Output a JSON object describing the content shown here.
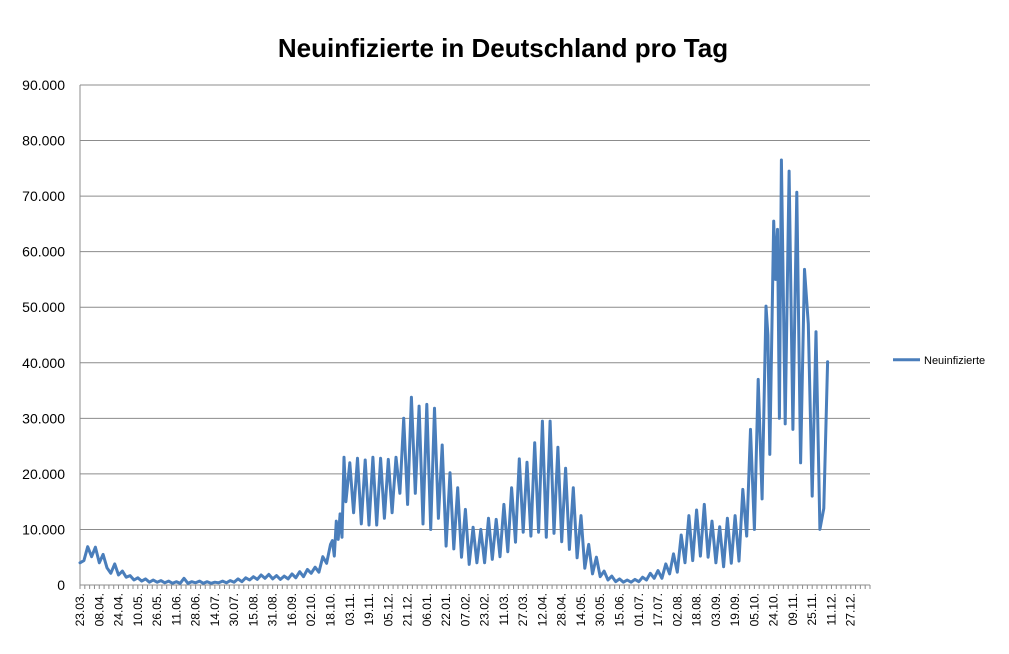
{
  "chart_data": {
    "type": "line",
    "title": "Neuinfizierte in Deutschland pro Tag",
    "xlabel": "",
    "ylabel": "",
    "ylim": [
      0,
      90000
    ],
    "yticks": [
      0,
      10000,
      20000,
      30000,
      40000,
      50000,
      60000,
      70000,
      80000,
      90000
    ],
    "ytick_labels": [
      "0",
      "10.000",
      "20.000",
      "30.000",
      "40.000",
      "50.000",
      "60.000",
      "70.000",
      "80.000",
      "90.000"
    ],
    "xtick_labels": [
      "23.03.",
      "08.04.",
      "24.04.",
      "10.05.",
      "26.05.",
      "11.06.",
      "28.06.",
      "14.07.",
      "30.07.",
      "15.08.",
      "31.08.",
      "16.09.",
      "02.10.",
      "18.10.",
      "03.11.",
      "19.11.",
      "05.12.",
      "21.12.",
      "06.01.",
      "22.01.",
      "07.02.",
      "23.02.",
      "11.03.",
      "27.03.",
      "12.04.",
      "28.04.",
      "14.05.",
      "30.05.",
      "15.06.",
      "01.07.",
      "17.07.",
      "02.08.",
      "18.08.",
      "03.09.",
      "19.09.",
      "05.10.",
      "24.10.",
      "09.11.",
      "25.11.",
      "11.12.",
      "27.12."
    ],
    "grid": true,
    "legend_position": "right",
    "color": "#4a7ebb",
    "series": [
      {
        "name": "Neuinfizierte",
        "x_index_range": [
          0,
          40.5
        ],
        "points": [
          [
            0.0,
            4000
          ],
          [
            0.2,
            4400
          ],
          [
            0.4,
            6900
          ],
          [
            0.6,
            5100
          ],
          [
            0.8,
            6800
          ],
          [
            1.0,
            4000
          ],
          [
            1.2,
            5500
          ],
          [
            1.4,
            3100
          ],
          [
            1.6,
            2100
          ],
          [
            1.8,
            3800
          ],
          [
            2.0,
            1800
          ],
          [
            2.2,
            2500
          ],
          [
            2.4,
            1400
          ],
          [
            2.6,
            1700
          ],
          [
            2.8,
            900
          ],
          [
            3.0,
            1300
          ],
          [
            3.2,
            700
          ],
          [
            3.4,
            1100
          ],
          [
            3.6,
            500
          ],
          [
            3.8,
            900
          ],
          [
            4.0,
            500
          ],
          [
            4.2,
            800
          ],
          [
            4.4,
            400
          ],
          [
            4.6,
            700
          ],
          [
            4.8,
            300
          ],
          [
            5.0,
            600
          ],
          [
            5.2,
            300
          ],
          [
            5.4,
            1200
          ],
          [
            5.6,
            300
          ],
          [
            5.8,
            600
          ],
          [
            6.0,
            400
          ],
          [
            6.2,
            700
          ],
          [
            6.4,
            300
          ],
          [
            6.6,
            600
          ],
          [
            6.8,
            300
          ],
          [
            7.0,
            500
          ],
          [
            7.2,
            400
          ],
          [
            7.4,
            700
          ],
          [
            7.6,
            400
          ],
          [
            7.8,
            800
          ],
          [
            8.0,
            500
          ],
          [
            8.2,
            1100
          ],
          [
            8.4,
            600
          ],
          [
            8.6,
            1300
          ],
          [
            8.8,
            900
          ],
          [
            9.0,
            1500
          ],
          [
            9.2,
            1000
          ],
          [
            9.4,
            1800
          ],
          [
            9.6,
            1200
          ],
          [
            9.8,
            1900
          ],
          [
            10.0,
            1100
          ],
          [
            10.2,
            1700
          ],
          [
            10.4,
            1000
          ],
          [
            10.6,
            1600
          ],
          [
            10.8,
            1100
          ],
          [
            11.0,
            2000
          ],
          [
            11.2,
            1300
          ],
          [
            11.4,
            2400
          ],
          [
            11.6,
            1500
          ],
          [
            11.8,
            2800
          ],
          [
            12.0,
            2100
          ],
          [
            12.2,
            3200
          ],
          [
            12.4,
            2300
          ],
          [
            12.6,
            5100
          ],
          [
            12.8,
            3900
          ],
          [
            13.0,
            7300
          ],
          [
            13.1,
            8000
          ],
          [
            13.2,
            5200
          ],
          [
            13.3,
            11500
          ],
          [
            13.4,
            8200
          ],
          [
            13.5,
            12800
          ],
          [
            13.6,
            8600
          ],
          [
            13.7,
            23000
          ],
          [
            13.8,
            15000
          ],
          [
            14.0,
            22000
          ],
          [
            14.2,
            13000
          ],
          [
            14.4,
            22800
          ],
          [
            14.6,
            11000
          ],
          [
            14.8,
            22500
          ],
          [
            15.0,
            10800
          ],
          [
            15.2,
            23000
          ],
          [
            15.4,
            10800
          ],
          [
            15.6,
            22800
          ],
          [
            15.8,
            12000
          ],
          [
            16.0,
            22600
          ],
          [
            16.2,
            13000
          ],
          [
            16.4,
            23000
          ],
          [
            16.6,
            16500
          ],
          [
            16.8,
            30000
          ],
          [
            17.0,
            14500
          ],
          [
            17.2,
            33800
          ],
          [
            17.4,
            16500
          ],
          [
            17.6,
            32200
          ],
          [
            17.8,
            11000
          ],
          [
            18.0,
            32500
          ],
          [
            18.2,
            10000
          ],
          [
            18.4,
            31800
          ],
          [
            18.6,
            12000
          ],
          [
            18.8,
            25200
          ],
          [
            19.0,
            7000
          ],
          [
            19.2,
            20200
          ],
          [
            19.4,
            6500
          ],
          [
            19.6,
            17500
          ],
          [
            19.8,
            5000
          ],
          [
            20.0,
            13600
          ],
          [
            20.2,
            3700
          ],
          [
            20.4,
            10400
          ],
          [
            20.6,
            4000
          ],
          [
            20.8,
            10000
          ],
          [
            21.0,
            4000
          ],
          [
            21.2,
            12000
          ],
          [
            21.4,
            4600
          ],
          [
            21.6,
            11800
          ],
          [
            21.8,
            5100
          ],
          [
            22.0,
            14500
          ],
          [
            22.2,
            6000
          ],
          [
            22.4,
            17500
          ],
          [
            22.6,
            7700
          ],
          [
            22.8,
            22700
          ],
          [
            23.0,
            9500
          ],
          [
            23.2,
            22100
          ],
          [
            23.4,
            8800
          ],
          [
            23.6,
            25600
          ],
          [
            23.8,
            9500
          ],
          [
            24.0,
            29500
          ],
          [
            24.2,
            8600
          ],
          [
            24.4,
            29500
          ],
          [
            24.6,
            9300
          ],
          [
            24.8,
            24800
          ],
          [
            25.0,
            7800
          ],
          [
            25.2,
            21000
          ],
          [
            25.4,
            6400
          ],
          [
            25.6,
            17500
          ],
          [
            25.8,
            4900
          ],
          [
            26.0,
            12500
          ],
          [
            26.2,
            3000
          ],
          [
            26.4,
            7300
          ],
          [
            26.6,
            2000
          ],
          [
            26.8,
            5000
          ],
          [
            27.0,
            1500
          ],
          [
            27.2,
            2500
          ],
          [
            27.4,
            900
          ],
          [
            27.6,
            1600
          ],
          [
            27.8,
            600
          ],
          [
            28.0,
            1100
          ],
          [
            28.2,
            500
          ],
          [
            28.4,
            900
          ],
          [
            28.6,
            500
          ],
          [
            28.8,
            1000
          ],
          [
            29.0,
            600
          ],
          [
            29.2,
            1400
          ],
          [
            29.4,
            900
          ],
          [
            29.6,
            2100
          ],
          [
            29.8,
            1200
          ],
          [
            30.0,
            2600
          ],
          [
            30.2,
            1200
          ],
          [
            30.4,
            3800
          ],
          [
            30.6,
            2000
          ],
          [
            30.8,
            5600
          ],
          [
            31.0,
            2300
          ],
          [
            31.2,
            9000
          ],
          [
            31.4,
            4000
          ],
          [
            31.6,
            12500
          ],
          [
            31.8,
            4400
          ],
          [
            32.0,
            13500
          ],
          [
            32.2,
            5200
          ],
          [
            32.4,
            14500
          ],
          [
            32.6,
            5000
          ],
          [
            32.8,
            11500
          ],
          [
            33.0,
            4000
          ],
          [
            33.2,
            10500
          ],
          [
            33.4,
            3300
          ],
          [
            33.6,
            12000
          ],
          [
            33.8,
            3900
          ],
          [
            34.0,
            12500
          ],
          [
            34.2,
            4300
          ],
          [
            34.4,
            17200
          ],
          [
            34.6,
            8800
          ],
          [
            34.8,
            28000
          ],
          [
            35.0,
            10000
          ],
          [
            35.2,
            37000
          ],
          [
            35.4,
            15500
          ],
          [
            35.6,
            50200
          ],
          [
            35.7,
            45000
          ],
          [
            35.8,
            23500
          ],
          [
            36.0,
            65500
          ],
          [
            36.1,
            55000
          ],
          [
            36.2,
            64000
          ],
          [
            36.3,
            30000
          ],
          [
            36.4,
            76500
          ],
          [
            36.6,
            29000
          ],
          [
            36.8,
            74500
          ],
          [
            37.0,
            28000
          ],
          [
            37.2,
            70700
          ],
          [
            37.4,
            22000
          ],
          [
            37.6,
            56800
          ],
          [
            37.8,
            47000
          ],
          [
            38.0,
            16000
          ],
          [
            38.2,
            45600
          ],
          [
            38.4,
            10000
          ],
          [
            38.6,
            13800
          ],
          [
            38.8,
            40200
          ]
        ]
      }
    ]
  }
}
